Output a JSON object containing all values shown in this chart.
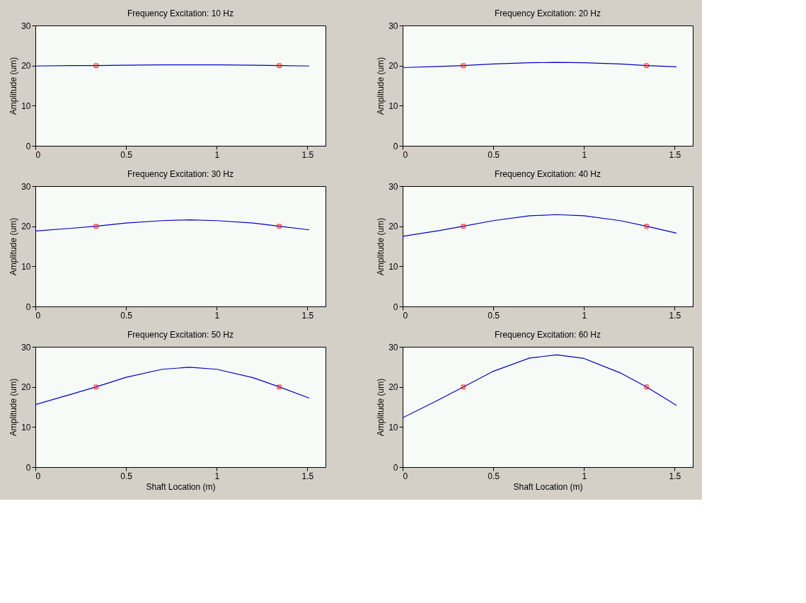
{
  "chart_data": [
    {
      "type": "line",
      "title": "Frequency Excitation: 10 Hz",
      "ylabel": "Amplitude (um)",
      "xlim": [
        0,
        1.6
      ],
      "ylim": [
        0,
        30
      ],
      "xticks": [
        0,
        0.5,
        1,
        1.5
      ],
      "yticks": [
        0,
        10,
        20,
        30
      ],
      "grid": false,
      "tick_labels": true,
      "series": [
        {
          "color": "#0000c0",
          "x": [
            0,
            0.2,
            0.335,
            0.5,
            0.7,
            0.85,
            1.0,
            1.2,
            1.345,
            1.51
          ],
          "values": [
            19.9,
            20.0,
            20,
            20.1,
            20.2,
            20.2,
            20.2,
            20.1,
            20,
            19.9
          ]
        },
        {
          "type": "scatter",
          "marker": "cross",
          "color": "#ff0000",
          "x": [
            0.335,
            1.345
          ],
          "values": [
            20,
            20
          ]
        }
      ]
    },
    {
      "type": "line",
      "title": "Frequency Excitation: 20 Hz",
      "ylabel": "Amplitude (um)",
      "xlim": [
        0,
        1.6
      ],
      "ylim": [
        0,
        30
      ],
      "xticks": [
        0,
        0.5,
        1,
        1.5
      ],
      "yticks": [
        0,
        10,
        20,
        30
      ],
      "grid": false,
      "series": [
        {
          "color": "#0000c0",
          "x": [
            0,
            0.2,
            0.335,
            0.5,
            0.7,
            0.85,
            1.0,
            1.2,
            1.345,
            1.51
          ],
          "values": [
            19.5,
            19.8,
            20,
            20.4,
            20.7,
            20.8,
            20.7,
            20.4,
            20,
            19.7
          ]
        },
        {
          "type": "scatter",
          "marker": "cross",
          "color": "#ff0000",
          "x": [
            0.335,
            1.345
          ],
          "values": [
            20,
            20
          ]
        }
      ]
    },
    {
      "type": "line",
      "title": "Frequency Excitation: 30 Hz",
      "ylabel": "Amplitude (um)",
      "xlim": [
        0,
        1.6
      ],
      "ylim": [
        0,
        30
      ],
      "xticks": [
        0,
        0.5,
        1,
        1.5
      ],
      "yticks": [
        0,
        10,
        20,
        30
      ],
      "grid": false,
      "series": [
        {
          "color": "#0000c0",
          "x": [
            0,
            0.2,
            0.335,
            0.5,
            0.7,
            0.85,
            1.0,
            1.2,
            1.345,
            1.51
          ],
          "values": [
            18.8,
            19.5,
            20,
            20.8,
            21.4,
            21.6,
            21.4,
            20.8,
            20,
            19.1
          ]
        },
        {
          "type": "scatter",
          "marker": "cross",
          "color": "#ff0000",
          "x": [
            0.335,
            1.345
          ],
          "values": [
            20,
            20
          ]
        }
      ]
    },
    {
      "type": "line",
      "title": "Frequency Excitation: 40 Hz",
      "ylabel": "Amplitude (um)",
      "xlim": [
        0,
        1.6
      ],
      "ylim": [
        0,
        30
      ],
      "xticks": [
        0,
        0.5,
        1,
        1.5
      ],
      "yticks": [
        0,
        10,
        20,
        30
      ],
      "grid": false,
      "series": [
        {
          "color": "#0000c0",
          "x": [
            0,
            0.2,
            0.335,
            0.5,
            0.7,
            0.85,
            1.0,
            1.2,
            1.345,
            1.51
          ],
          "values": [
            17.5,
            18.9,
            20,
            21.4,
            22.6,
            22.9,
            22.6,
            21.4,
            20,
            18.3
          ]
        },
        {
          "type": "scatter",
          "marker": "cross",
          "color": "#ff0000",
          "x": [
            0.335,
            1.345
          ],
          "values": [
            20,
            20
          ]
        }
      ]
    },
    {
      "type": "line",
      "title": "Frequency Excitation: 50 Hz",
      "ylabel": "Amplitude (um)",
      "xlabel": "Shaft Location (m)",
      "xlim": [
        0,
        1.6
      ],
      "ylim": [
        0,
        30
      ],
      "xticks": [
        0,
        0.5,
        1,
        1.5
      ],
      "yticks": [
        0,
        10,
        20,
        30
      ],
      "grid": false,
      "series": [
        {
          "color": "#0000c0",
          "x": [
            0,
            0.2,
            0.335,
            0.5,
            0.7,
            0.85,
            1.0,
            1.2,
            1.345,
            1.51
          ],
          "values": [
            15.6,
            18.2,
            20,
            22.4,
            24.4,
            24.9,
            24.4,
            22.3,
            20,
            17.2
          ]
        },
        {
          "type": "scatter",
          "marker": "cross",
          "color": "#ff0000",
          "x": [
            0.335,
            1.345
          ],
          "values": [
            20,
            20
          ]
        }
      ]
    },
    {
      "type": "line",
      "title": "Frequency Excitation: 60 Hz",
      "ylabel": "Amplitude (um)",
      "xlabel": "Shaft Location (m)",
      "xlim": [
        0,
        1.6
      ],
      "ylim": [
        0,
        30
      ],
      "xticks": [
        0,
        0.5,
        1,
        1.5
      ],
      "yticks": [
        0,
        10,
        20,
        30
      ],
      "grid": false,
      "series": [
        {
          "color": "#0000c0",
          "x": [
            0,
            0.2,
            0.335,
            0.5,
            0.7,
            0.85,
            1.0,
            1.2,
            1.345,
            1.51
          ],
          "values": [
            12.3,
            16.8,
            20,
            23.9,
            27.2,
            28.0,
            27.1,
            23.5,
            20,
            15.4
          ]
        },
        {
          "type": "scatter",
          "marker": "cross",
          "color": "#ff0000",
          "x": [
            0.335,
            1.345
          ],
          "values": [
            20,
            20
          ]
        }
      ]
    }
  ]
}
